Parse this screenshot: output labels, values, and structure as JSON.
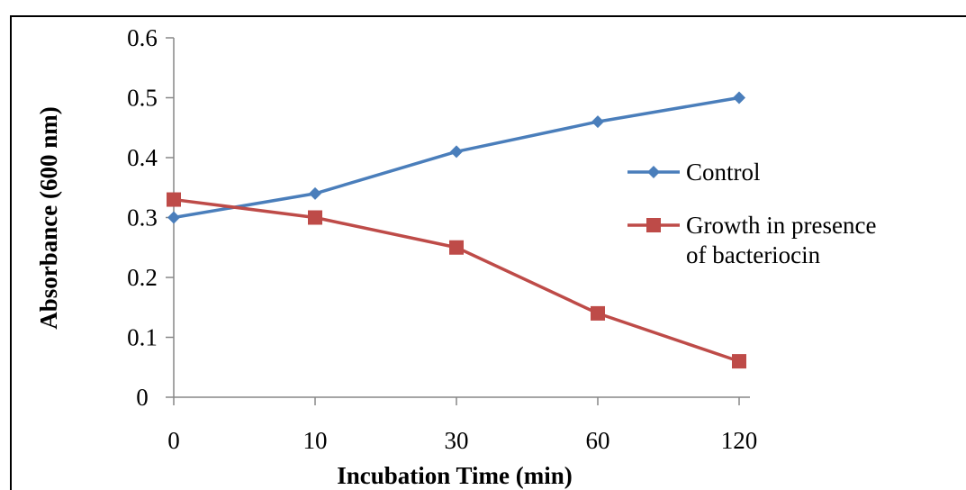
{
  "chart_data": {
    "type": "line",
    "categories": [
      "0",
      "10",
      "30",
      "60",
      "120"
    ],
    "series": [
      {
        "name": "Control",
        "values": [
          0.3,
          0.34,
          0.41,
          0.46,
          0.5
        ],
        "color": "#4A7EBB",
        "marker": "diamond"
      },
      {
        "name": "Growth in presence of bacteriocin",
        "name_lines": [
          "Growth in presence",
          "of bacteriocin"
        ],
        "values": [
          0.33,
          0.3,
          0.25,
          0.14,
          0.06
        ],
        "color": "#BE4B48",
        "marker": "square"
      }
    ],
    "title": "",
    "xlabel": "Incubation Time (min)",
    "ylabel": "Absorbance (600 nm)",
    "ylim": [
      0,
      0.6
    ],
    "yticks": [
      "0",
      "0.1",
      "0.2",
      "0.3",
      "0.4",
      "0.5",
      "0.6"
    ],
    "grid": false,
    "legend_position": "right"
  }
}
